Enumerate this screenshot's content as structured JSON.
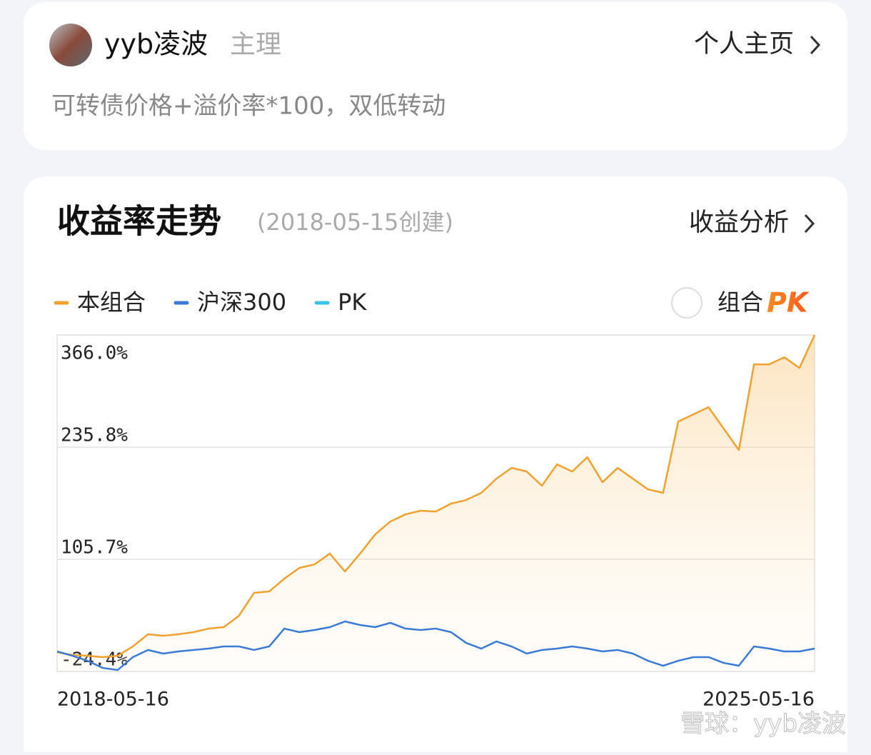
{
  "header": {
    "user_name": "yyb凌波",
    "role": "主理",
    "profile_link": "个人主页",
    "description": "可转债价格+溢价率*100，双低转动"
  },
  "section": {
    "title": "收益率走势",
    "created": "(2018-05-15创建)",
    "analysis_link": "收益分析",
    "compare_label": "组合",
    "pk_label": "PK"
  },
  "chart_data": {
    "type": "line",
    "categories": [
      "2018-05-16",
      null,
      null,
      null,
      null,
      null,
      null,
      null,
      null,
      null,
      null,
      null,
      null,
      null,
      null,
      null,
      null,
      null,
      null,
      null,
      null,
      null,
      null,
      null,
      null,
      null,
      null,
      null,
      null,
      null,
      null,
      null,
      null,
      null,
      null,
      null,
      null,
      null,
      null,
      null,
      null,
      null,
      null,
      null,
      null,
      null,
      null,
      null,
      null,
      null,
      "2025-05-16"
    ],
    "series": [
      {
        "name": "本组合",
        "color": "#f2a12e",
        "fill": true,
        "values": [
          -2.0,
          -5.3,
          -6.2,
          -7.8,
          -6.2,
          4.6,
          18.7,
          17.0,
          18.7,
          21.2,
          25.3,
          27.0,
          40.2,
          66.8,
          68.4,
          83.3,
          95.8,
          99.9,
          112.3,
          91.6,
          112.3,
          134.7,
          149.6,
          157.9,
          162.1,
          161.2,
          170.3,
          174.5,
          182.8,
          199.3,
          211.8,
          207.6,
          191.1,
          215.9,
          207.6,
          224.2,
          195.2,
          211.8,
          199.3,
          186.9,
          182.8,
          265.6,
          273.9,
          282.2,
          257.4,
          232.5,
          331.9,
          331.9,
          340.2,
          327.8,
          366.0
        ]
      },
      {
        "name": "沪深300",
        "color": "#3a7bd5",
        "fill": false,
        "values": [
          -1.2,
          -6.2,
          -12.0,
          -20.3,
          -22.7,
          -7.8,
          0.5,
          -3.7,
          -1.2,
          0.5,
          2.1,
          4.6,
          4.6,
          0.5,
          4.6,
          25.3,
          21.2,
          23.7,
          27.0,
          33.6,
          29.5,
          27.0,
          32.0,
          25.3,
          23.7,
          25.3,
          21.2,
          8.7,
          2.1,
          10.4,
          4.6,
          -3.7,
          0.5,
          2.1,
          4.6,
          2.1,
          -1.2,
          0.5,
          -3.7,
          -12.0,
          -17.8,
          -12.0,
          -7.8,
          -7.8,
          -14.5,
          -17.8,
          4.6,
          2.1,
          -1.2,
          -1.2,
          2.1
        ]
      },
      {
        "name": "PK",
        "color": "#3cc0e8",
        "fill": false,
        "values": [
          null,
          null,
          null,
          null,
          null,
          null,
          null,
          null,
          null,
          null,
          null,
          null,
          null,
          null,
          null,
          null,
          null,
          null,
          null,
          null,
          null,
          null,
          null,
          null,
          null,
          null,
          null,
          null,
          null,
          null,
          null,
          null,
          null,
          null,
          null,
          null,
          null,
          null,
          null,
          null,
          null,
          null,
          null,
          null,
          null,
          null,
          null,
          null,
          null,
          null,
          null
        ]
      }
    ],
    "ylim": [
      -24.4,
      366.0
    ],
    "yticks": [
      {
        "value": -24.4,
        "label": "-24.4%"
      },
      {
        "value": 105.7,
        "label": "105.7%"
      },
      {
        "value": 235.8,
        "label": "235.8%"
      },
      {
        "value": 366.0,
        "label": "366.0%"
      }
    ],
    "grid": true
  },
  "watermark": "雪球：yyb凌波"
}
